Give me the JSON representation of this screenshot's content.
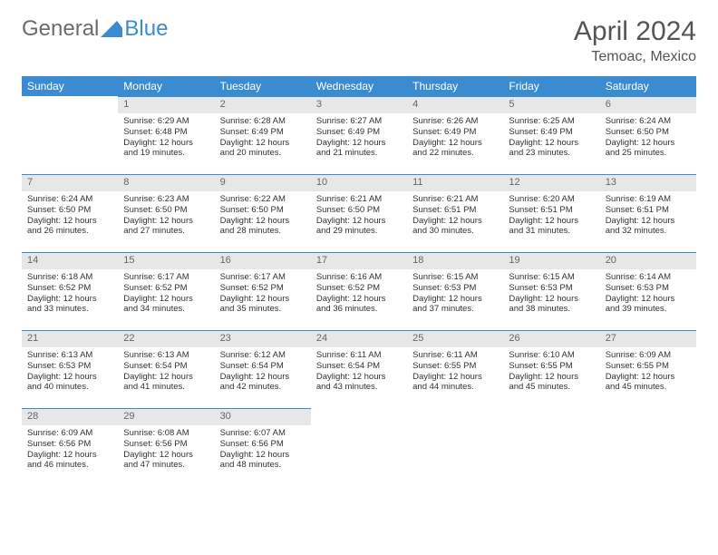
{
  "brand": {
    "name1": "General",
    "name2": "Blue"
  },
  "title": "April 2024",
  "location": "Temoac, Mexico",
  "colors": {
    "header_bg": "#3a8bd0",
    "header_text": "#ffffff",
    "daynum_bg": "#e7e7e7",
    "daynum_text": "#666666",
    "body_text": "#333333",
    "rule": "#3a8bd0",
    "page_bg": "#ffffff"
  },
  "fonts": {
    "title_size": 30,
    "location_size": 16,
    "th_size": 12,
    "cell_size": 9.5
  },
  "weekdays": [
    "Sunday",
    "Monday",
    "Tuesday",
    "Wednesday",
    "Thursday",
    "Friday",
    "Saturday"
  ],
  "grid": {
    "rows": 5,
    "cols": 7,
    "start_weekday_index": 1,
    "days_in_month": 30
  },
  "days": {
    "1": {
      "sunrise": "Sunrise: 6:29 AM",
      "sunset": "Sunset: 6:48 PM",
      "day1": "Daylight: 12 hours",
      "day2": "and 19 minutes."
    },
    "2": {
      "sunrise": "Sunrise: 6:28 AM",
      "sunset": "Sunset: 6:49 PM",
      "day1": "Daylight: 12 hours",
      "day2": "and 20 minutes."
    },
    "3": {
      "sunrise": "Sunrise: 6:27 AM",
      "sunset": "Sunset: 6:49 PM",
      "day1": "Daylight: 12 hours",
      "day2": "and 21 minutes."
    },
    "4": {
      "sunrise": "Sunrise: 6:26 AM",
      "sunset": "Sunset: 6:49 PM",
      "day1": "Daylight: 12 hours",
      "day2": "and 22 minutes."
    },
    "5": {
      "sunrise": "Sunrise: 6:25 AM",
      "sunset": "Sunset: 6:49 PM",
      "day1": "Daylight: 12 hours",
      "day2": "and 23 minutes."
    },
    "6": {
      "sunrise": "Sunrise: 6:24 AM",
      "sunset": "Sunset: 6:50 PM",
      "day1": "Daylight: 12 hours",
      "day2": "and 25 minutes."
    },
    "7": {
      "sunrise": "Sunrise: 6:24 AM",
      "sunset": "Sunset: 6:50 PM",
      "day1": "Daylight: 12 hours",
      "day2": "and 26 minutes."
    },
    "8": {
      "sunrise": "Sunrise: 6:23 AM",
      "sunset": "Sunset: 6:50 PM",
      "day1": "Daylight: 12 hours",
      "day2": "and 27 minutes."
    },
    "9": {
      "sunrise": "Sunrise: 6:22 AM",
      "sunset": "Sunset: 6:50 PM",
      "day1": "Daylight: 12 hours",
      "day2": "and 28 minutes."
    },
    "10": {
      "sunrise": "Sunrise: 6:21 AM",
      "sunset": "Sunset: 6:50 PM",
      "day1": "Daylight: 12 hours",
      "day2": "and 29 minutes."
    },
    "11": {
      "sunrise": "Sunrise: 6:21 AM",
      "sunset": "Sunset: 6:51 PM",
      "day1": "Daylight: 12 hours",
      "day2": "and 30 minutes."
    },
    "12": {
      "sunrise": "Sunrise: 6:20 AM",
      "sunset": "Sunset: 6:51 PM",
      "day1": "Daylight: 12 hours",
      "day2": "and 31 minutes."
    },
    "13": {
      "sunrise": "Sunrise: 6:19 AM",
      "sunset": "Sunset: 6:51 PM",
      "day1": "Daylight: 12 hours",
      "day2": "and 32 minutes."
    },
    "14": {
      "sunrise": "Sunrise: 6:18 AM",
      "sunset": "Sunset: 6:52 PM",
      "day1": "Daylight: 12 hours",
      "day2": "and 33 minutes."
    },
    "15": {
      "sunrise": "Sunrise: 6:17 AM",
      "sunset": "Sunset: 6:52 PM",
      "day1": "Daylight: 12 hours",
      "day2": "and 34 minutes."
    },
    "16": {
      "sunrise": "Sunrise: 6:17 AM",
      "sunset": "Sunset: 6:52 PM",
      "day1": "Daylight: 12 hours",
      "day2": "and 35 minutes."
    },
    "17": {
      "sunrise": "Sunrise: 6:16 AM",
      "sunset": "Sunset: 6:52 PM",
      "day1": "Daylight: 12 hours",
      "day2": "and 36 minutes."
    },
    "18": {
      "sunrise": "Sunrise: 6:15 AM",
      "sunset": "Sunset: 6:53 PM",
      "day1": "Daylight: 12 hours",
      "day2": "and 37 minutes."
    },
    "19": {
      "sunrise": "Sunrise: 6:15 AM",
      "sunset": "Sunset: 6:53 PM",
      "day1": "Daylight: 12 hours",
      "day2": "and 38 minutes."
    },
    "20": {
      "sunrise": "Sunrise: 6:14 AM",
      "sunset": "Sunset: 6:53 PM",
      "day1": "Daylight: 12 hours",
      "day2": "and 39 minutes."
    },
    "21": {
      "sunrise": "Sunrise: 6:13 AM",
      "sunset": "Sunset: 6:53 PM",
      "day1": "Daylight: 12 hours",
      "day2": "and 40 minutes."
    },
    "22": {
      "sunrise": "Sunrise: 6:13 AM",
      "sunset": "Sunset: 6:54 PM",
      "day1": "Daylight: 12 hours",
      "day2": "and 41 minutes."
    },
    "23": {
      "sunrise": "Sunrise: 6:12 AM",
      "sunset": "Sunset: 6:54 PM",
      "day1": "Daylight: 12 hours",
      "day2": "and 42 minutes."
    },
    "24": {
      "sunrise": "Sunrise: 6:11 AM",
      "sunset": "Sunset: 6:54 PM",
      "day1": "Daylight: 12 hours",
      "day2": "and 43 minutes."
    },
    "25": {
      "sunrise": "Sunrise: 6:11 AM",
      "sunset": "Sunset: 6:55 PM",
      "day1": "Daylight: 12 hours",
      "day2": "and 44 minutes."
    },
    "26": {
      "sunrise": "Sunrise: 6:10 AM",
      "sunset": "Sunset: 6:55 PM",
      "day1": "Daylight: 12 hours",
      "day2": "and 45 minutes."
    },
    "27": {
      "sunrise": "Sunrise: 6:09 AM",
      "sunset": "Sunset: 6:55 PM",
      "day1": "Daylight: 12 hours",
      "day2": "and 45 minutes."
    },
    "28": {
      "sunrise": "Sunrise: 6:09 AM",
      "sunset": "Sunset: 6:56 PM",
      "day1": "Daylight: 12 hours",
      "day2": "and 46 minutes."
    },
    "29": {
      "sunrise": "Sunrise: 6:08 AM",
      "sunset": "Sunset: 6:56 PM",
      "day1": "Daylight: 12 hours",
      "day2": "and 47 minutes."
    },
    "30": {
      "sunrise": "Sunrise: 6:07 AM",
      "sunset": "Sunset: 6:56 PM",
      "day1": "Daylight: 12 hours",
      "day2": "and 48 minutes."
    }
  }
}
